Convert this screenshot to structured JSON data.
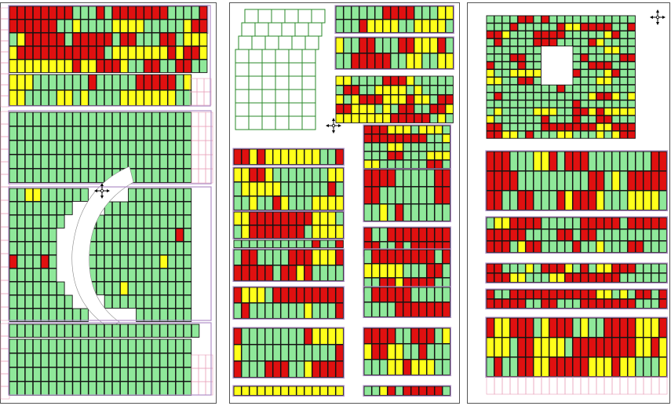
{
  "title": "",
  "legend": [],
  "colors": {
    "available": "#8fe89a",
    "reserved": "#ffff1a",
    "sold": "#e01010",
    "plot_outline": "#111111",
    "section_border": "#b090c8",
    "empty_grid": "#e8a0b8",
    "future_outline": "#2a8a2a",
    "panel_border": "#555555",
    "background": "#ffffff"
  },
  "panels": [
    {
      "id": "left-panel",
      "compass": "compass-icon"
    },
    {
      "id": "middle-panel",
      "compass": "compass-icon"
    },
    {
      "id": "right-panel",
      "compass": "compass-icon"
    }
  ]
}
